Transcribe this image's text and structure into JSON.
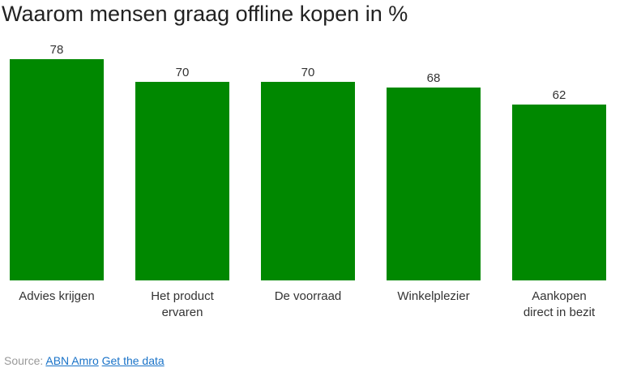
{
  "chart_data": {
    "type": "bar",
    "title": "Waarom mensen graag offline kopen in %",
    "categories": [
      [
        "Advies krijgen"
      ],
      [
        "Het product",
        "ervaren"
      ],
      [
        "De voorraad"
      ],
      [
        "Winkelplezier"
      ],
      [
        "Aankopen",
        "direct in bezit"
      ]
    ],
    "values": [
      78,
      70,
      70,
      68,
      62
    ],
    "ylim": [
      0,
      78
    ],
    "grid": false,
    "legend": "none",
    "bar_color": "#008800",
    "value_labels": true
  },
  "footer": {
    "source_label": "Source:",
    "source_link": "ABN Amro",
    "data_link": "Get the data"
  },
  "colors": {
    "bar": "#008800",
    "text": "#222222",
    "muted": "#999999",
    "link": "#1a73c8"
  }
}
